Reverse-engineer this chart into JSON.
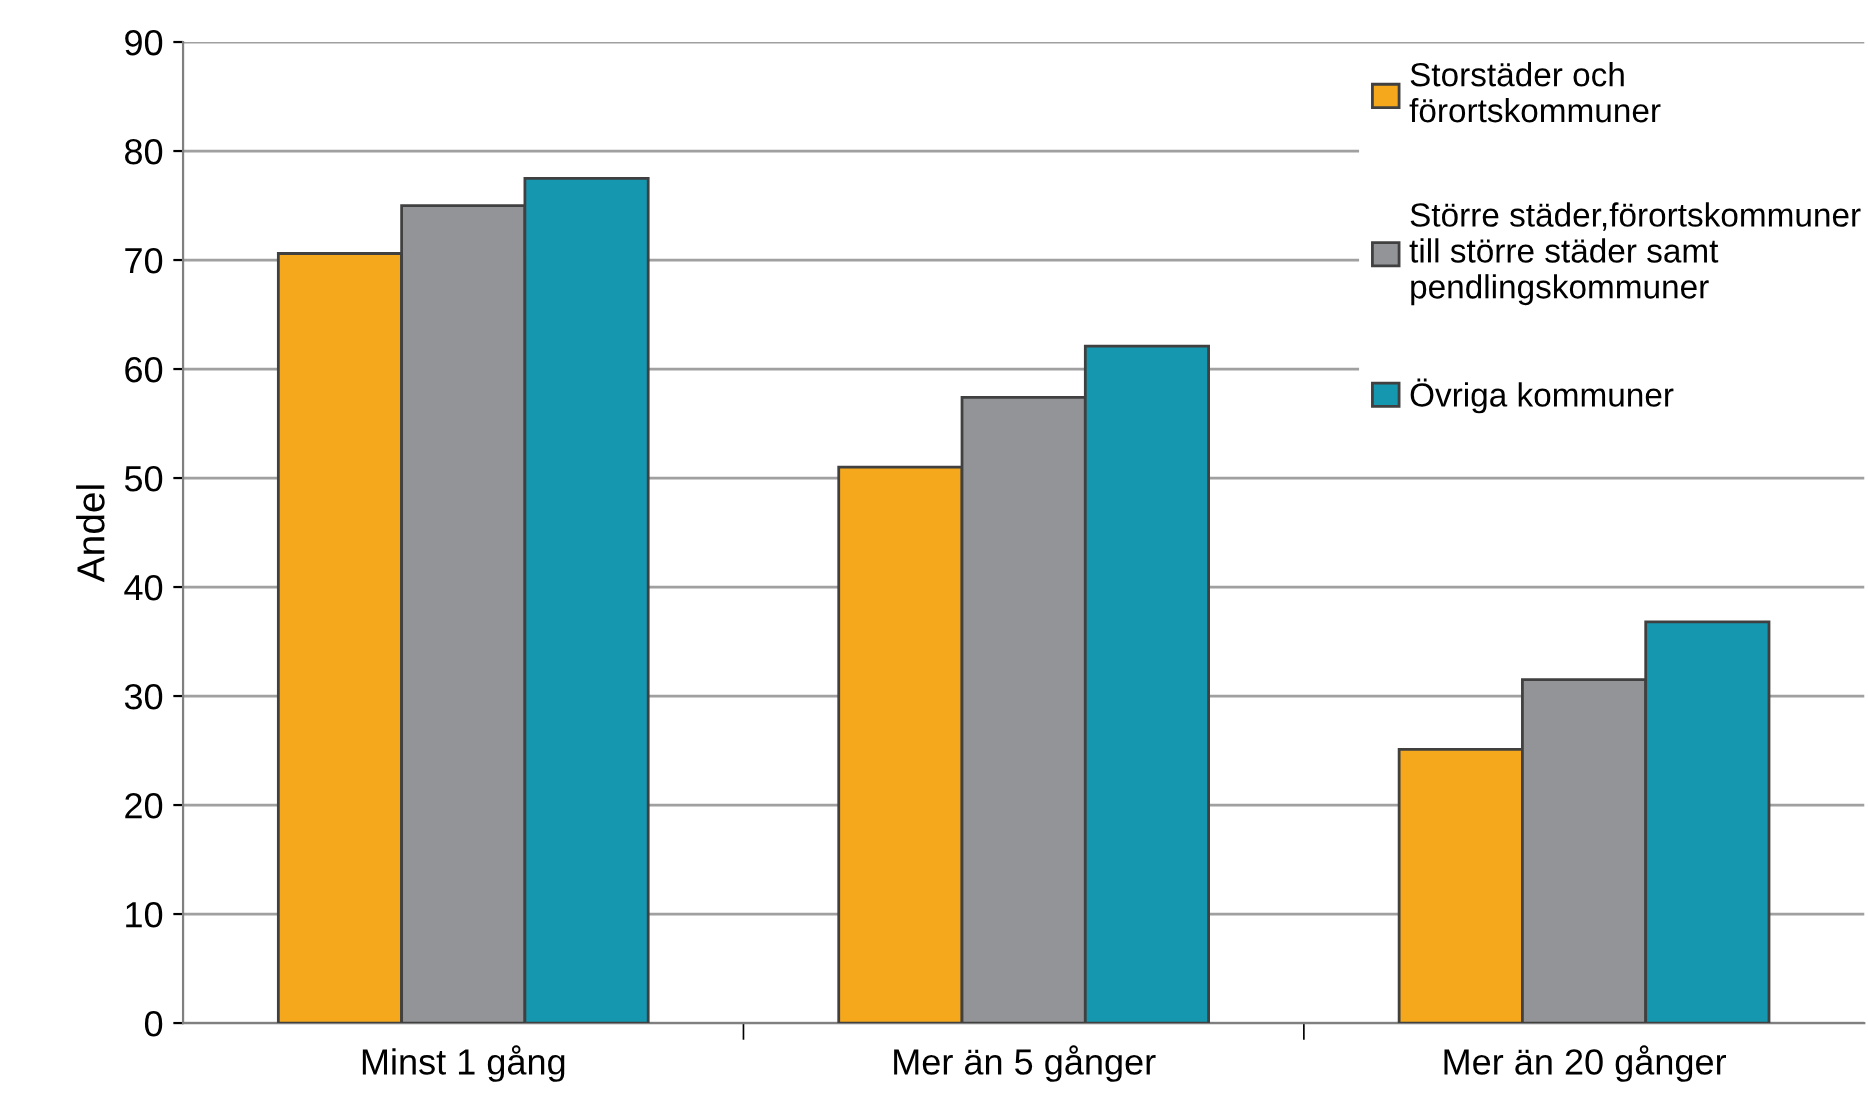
{
  "chart_data": {
    "type": "bar",
    "ylabel": "Andel",
    "categories": [
      "Minst 1 gång",
      "Mer än 5 gånger",
      "Mer än 20 gånger"
    ],
    "series": [
      {
        "name": "Storstäder och\nförortskommuner",
        "color": "#f5a81c",
        "values": [
          70.6,
          51.0,
          25.1
        ]
      },
      {
        "name": "Större städer,förortskommuner\ntill större städer samt\npendlingskommuner",
        "color": "#929497",
        "values": [
          75.0,
          57.4,
          31.5
        ]
      },
      {
        "name": "Övriga kommuner",
        "color": "#1597b0",
        "values": [
          77.5,
          62.1,
          36.8
        ]
      }
    ],
    "ylim": [
      0,
      90
    ],
    "yticks": [
      0,
      10,
      20,
      30,
      40,
      50,
      60,
      70,
      80,
      90
    ],
    "grid": "y",
    "legend": "top right"
  }
}
